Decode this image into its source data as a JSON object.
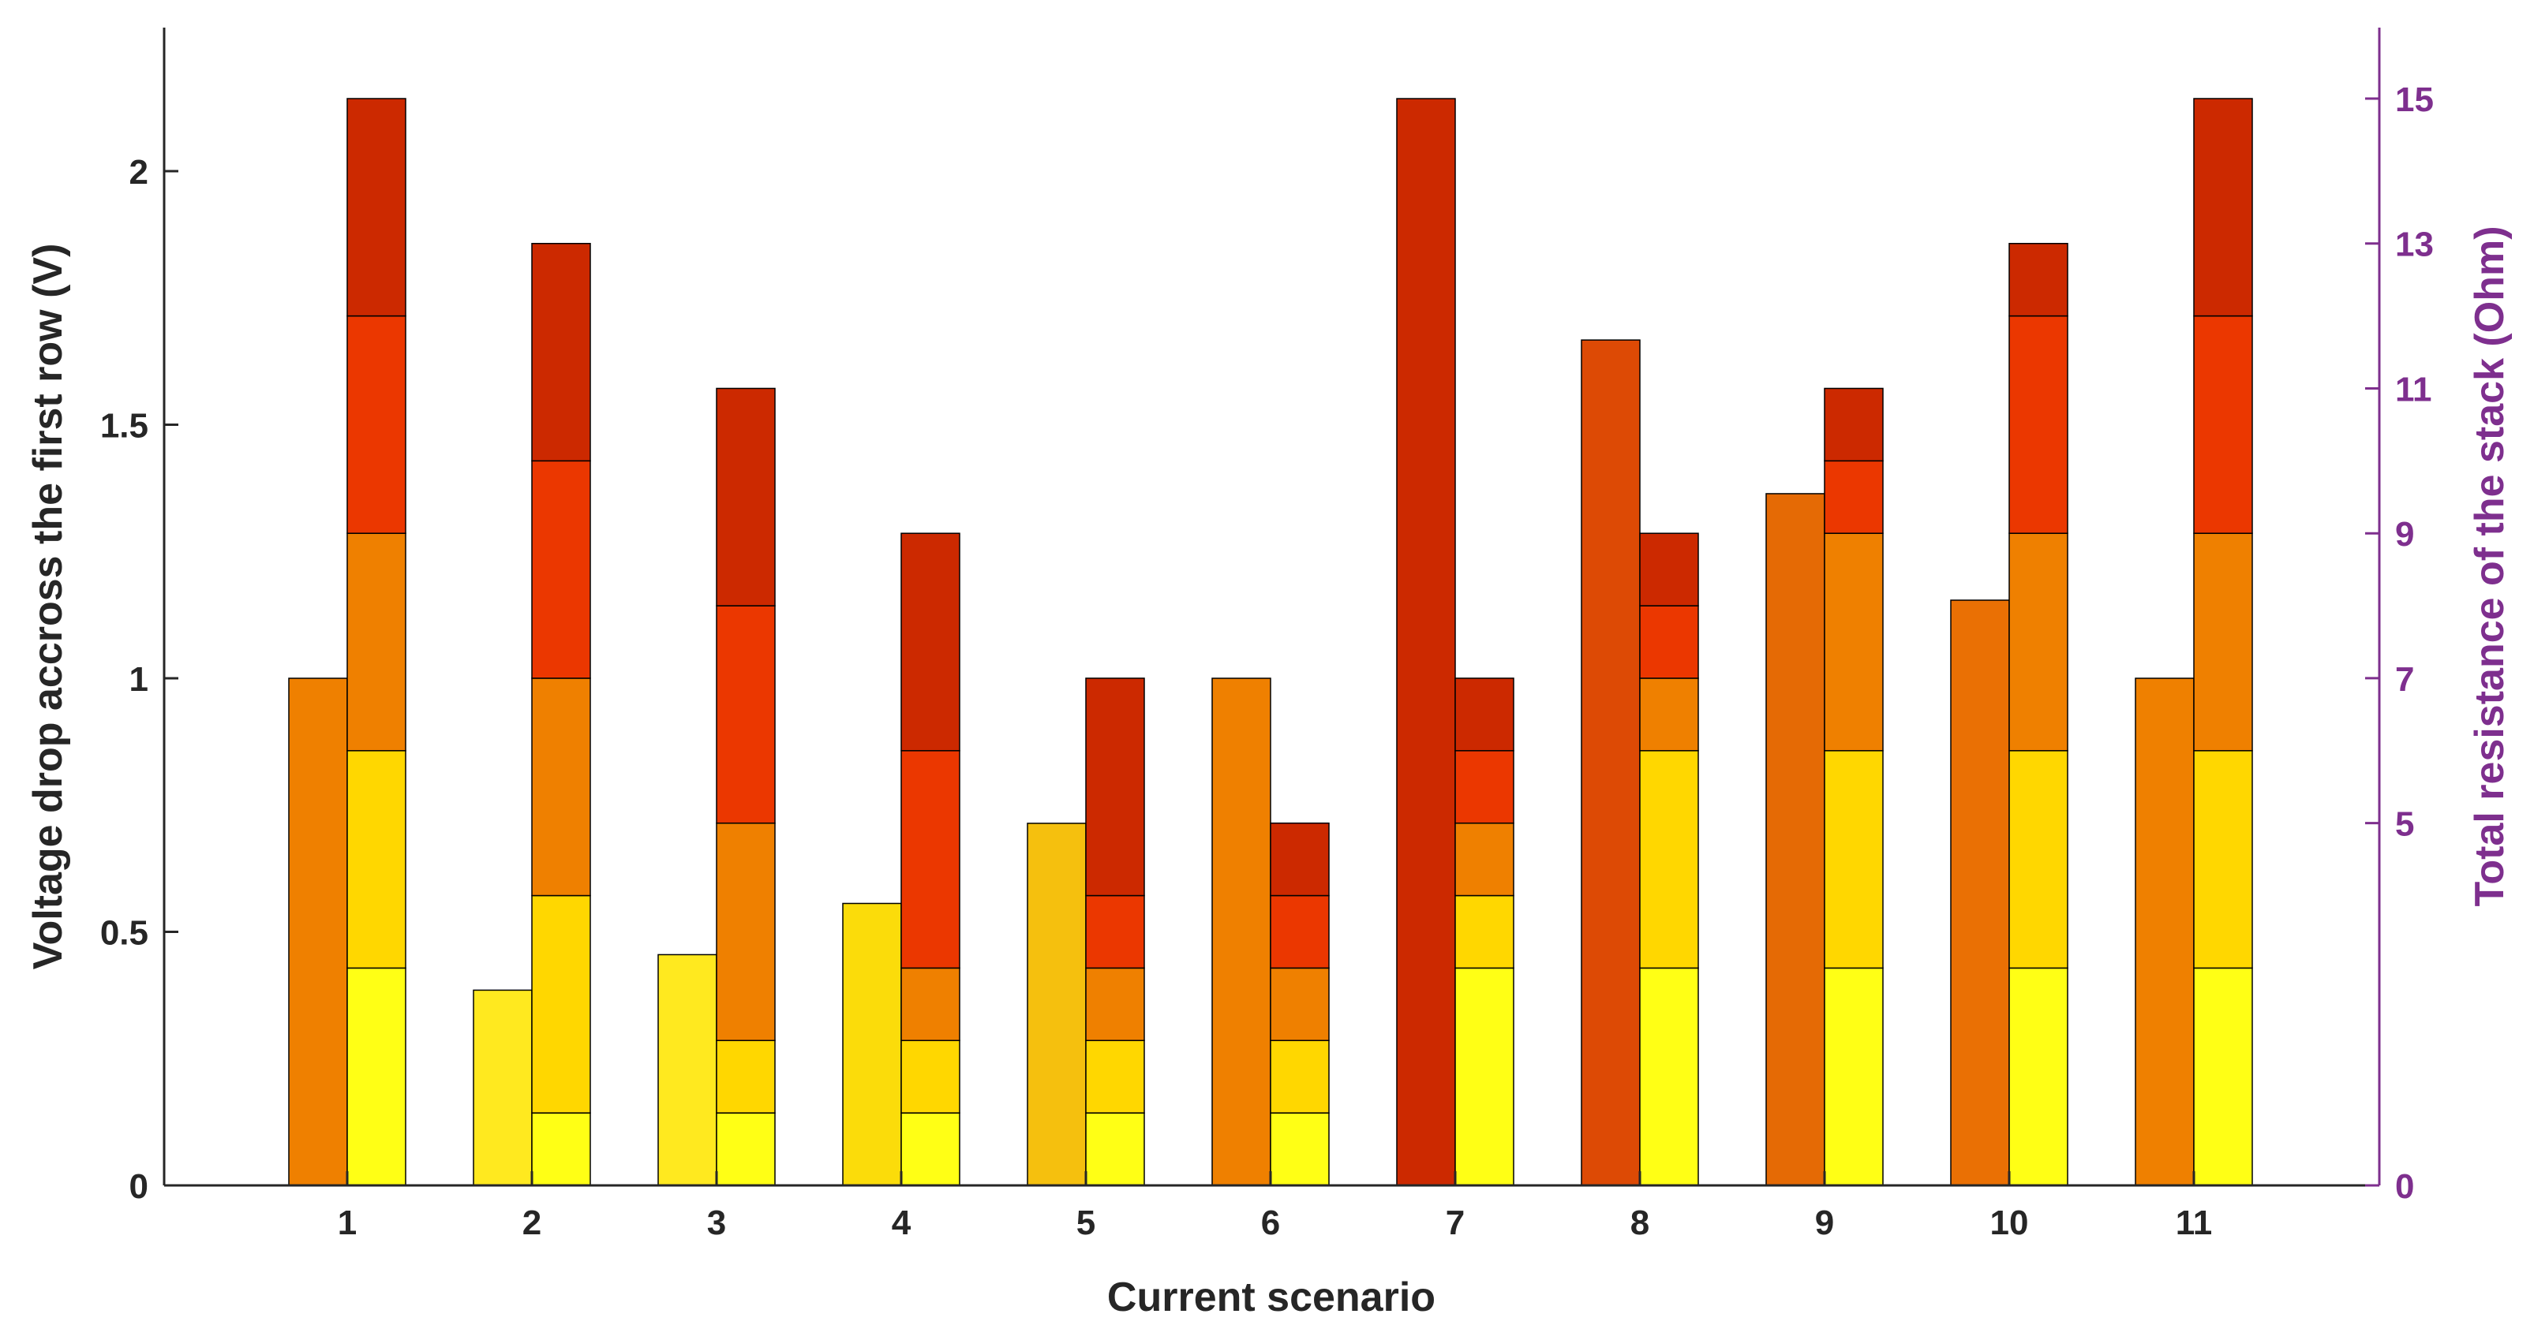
{
  "chart_data": {
    "type": "bar",
    "xlabel": "Current scenario",
    "ylabel": "Voltage drop accross the first row (V)",
    "ylabel_right": "Total resistance of the stack (Ohm)",
    "categories": [
      "1",
      "2",
      "3",
      "4",
      "5",
      "6",
      "7",
      "8",
      "9",
      "10",
      "11"
    ],
    "ylim": [
      0,
      2.28
    ],
    "ylim_right": [
      0,
      16
    ],
    "yticks": [
      0,
      0.5,
      1,
      1.5,
      2
    ],
    "yticks_labels": [
      "0",
      "0.5",
      "1",
      "1.5",
      "2"
    ],
    "yticks_right": [
      0,
      5,
      7,
      9,
      11,
      13,
      15
    ],
    "yticks_right_labels": [
      "0",
      "5",
      "7",
      "9",
      "11",
      "13",
      "15"
    ],
    "right_axis_color": "#7e2f8e",
    "voltage_drop_series": {
      "axis": "left",
      "values": [
        1.0,
        0.385,
        0.455,
        0.556,
        0.714,
        1.0,
        2.143,
        1.667,
        1.364,
        1.154,
        1.0
      ],
      "colors": [
        "#ef8000",
        "#ffe91f",
        "#ffe91f",
        "#fbdc0a",
        "#f5c00e",
        "#ef8000",
        "#cc2900",
        "#dd4a05",
        "#e56a05",
        "#ea7004",
        "#ef8000"
      ]
    },
    "resistance_stacks": {
      "axis": "right",
      "segment_colors": [
        "#ffff15",
        "#ffd700",
        "#ef8000",
        "#eb3700",
        "#cc2900"
      ],
      "stacks": [
        [
          3,
          3,
          3,
          3,
          3
        ],
        [
          1,
          3,
          3,
          3,
          3
        ],
        [
          1,
          1,
          3,
          3,
          3
        ],
        [
          1,
          1,
          1,
          3,
          3
        ],
        [
          1,
          1,
          1,
          1,
          3
        ],
        [
          1,
          1,
          1,
          1,
          1
        ],
        [
          3,
          1,
          1,
          1,
          1
        ],
        [
          3,
          3,
          1,
          1,
          1
        ],
        [
          3,
          3,
          3,
          1,
          1
        ],
        [
          3,
          3,
          3,
          3,
          1
        ],
        [
          3,
          3,
          3,
          3,
          3
        ]
      ],
      "totals": [
        15,
        13,
        11,
        9,
        7,
        5,
        7,
        9,
        11,
        13,
        15
      ]
    },
    "grid": false,
    "legend": "none"
  }
}
